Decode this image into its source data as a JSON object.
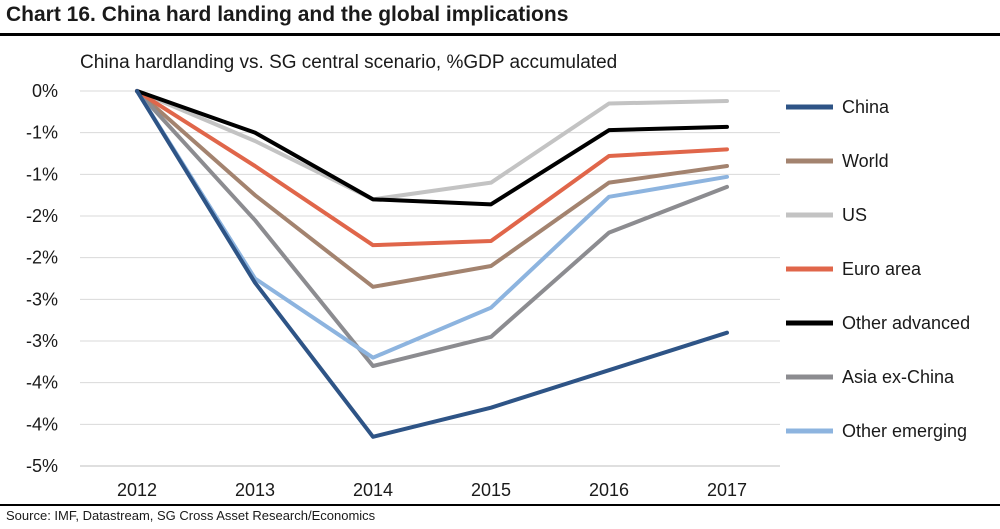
{
  "header": {
    "title": "Chart 16. China hard landing and the global implications",
    "source": "Source: IMF, Datastream, SG Cross Asset Research/Economics"
  },
  "chart_data": {
    "type": "line",
    "subtitle": "China hardlanding vs. SG central scenario, %GDP accumulated",
    "x": [
      "2012",
      "2013",
      "2014",
      "2015",
      "2016",
      "2017"
    ],
    "y_tick_labels": [
      "0%",
      "-1%",
      "-1%",
      "-2%",
      "-2%",
      "-3%",
      "-3%",
      "-4%",
      "-4%",
      "-5%"
    ],
    "ylim": [
      -4.5,
      0
    ],
    "y_tick_step": 0.5,
    "grid": "horizontal",
    "legend_position": "right",
    "series": [
      {
        "name": "China",
        "color": "#2e5486",
        "values": [
          0,
          -2.3,
          -4.15,
          -3.8,
          -3.35,
          -2.9
        ]
      },
      {
        "name": "World",
        "color": "#a3836f",
        "values": [
          0,
          -1.25,
          -2.35,
          -2.1,
          -1.1,
          -0.9
        ]
      },
      {
        "name": "US",
        "color": "#c3c3c3",
        "values": [
          0,
          -0.6,
          -1.3,
          -1.1,
          -0.15,
          -0.12
        ]
      },
      {
        "name": "Euro area",
        "color": "#e0664a",
        "values": [
          0,
          -0.9,
          -1.85,
          -1.8,
          -0.78,
          -0.7
        ]
      },
      {
        "name": "Other advanced",
        "color": "#000000",
        "values": [
          0,
          -0.5,
          -1.3,
          -1.36,
          -0.47,
          -0.43
        ]
      },
      {
        "name": "Asia ex-China",
        "color": "#8c8c90",
        "values": [
          0,
          -1.55,
          -3.3,
          -2.95,
          -1.7,
          -1.15
        ]
      },
      {
        "name": "Other emerging",
        "color": "#8db4df",
        "values": [
          0,
          -2.25,
          -3.2,
          -2.6,
          -1.27,
          -1.03
        ]
      }
    ]
  }
}
